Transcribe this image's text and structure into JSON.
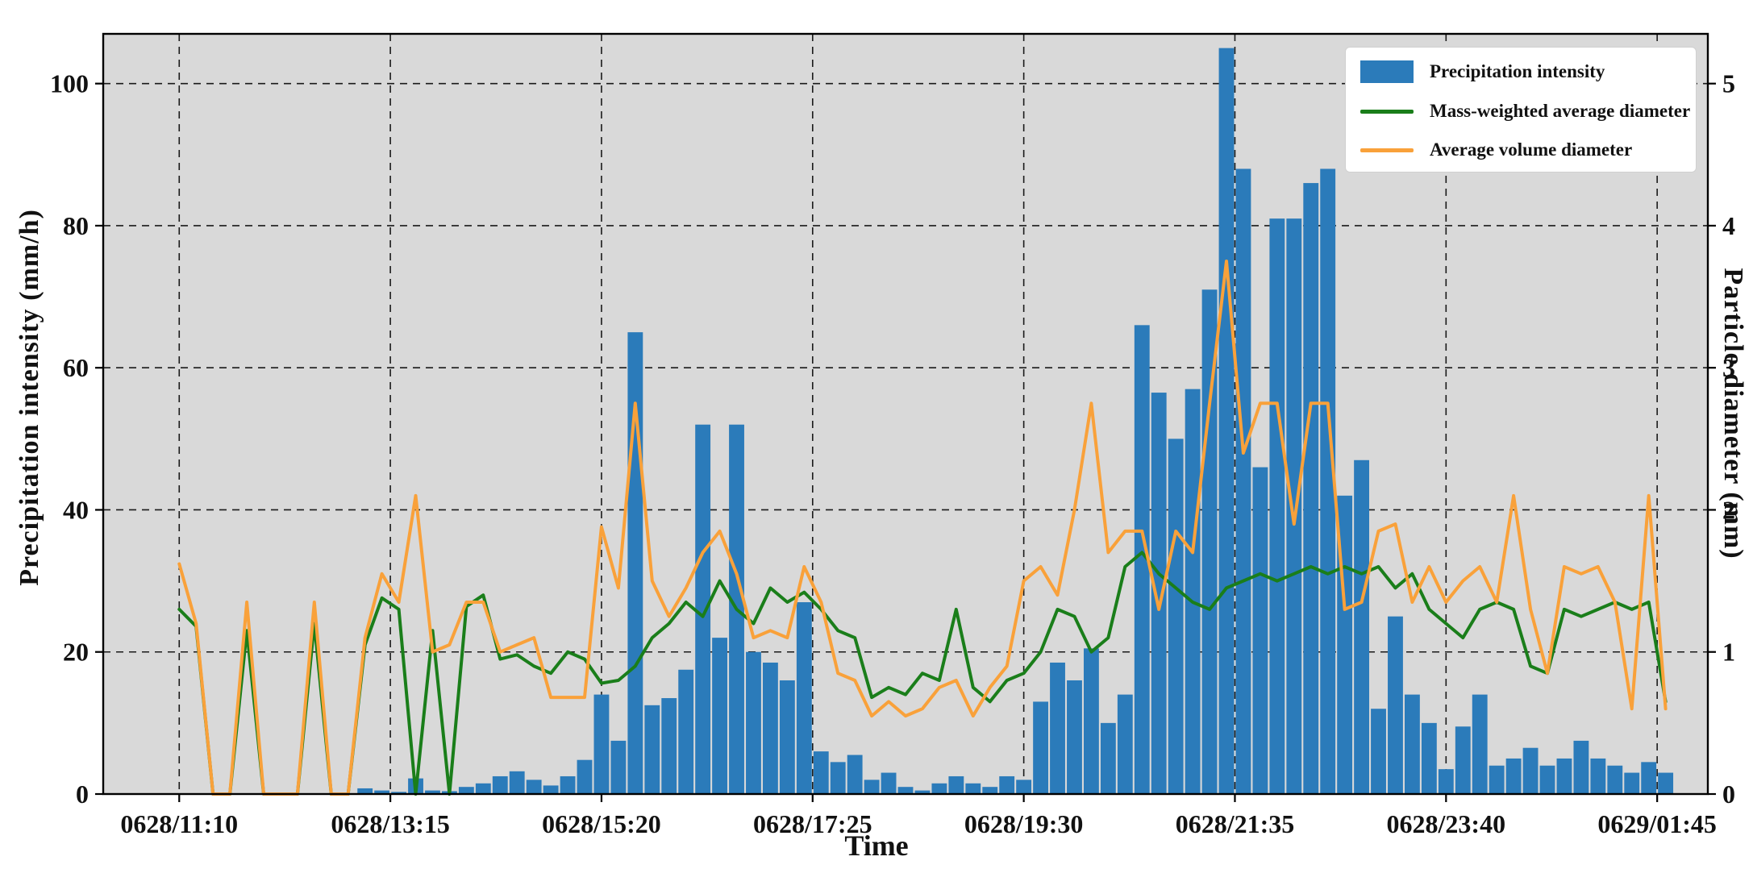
{
  "chart_data": {
    "type": "bar+line",
    "title": "",
    "xlabel": "Time",
    "ylabel_left": "Precipitation intensity (mm/h)",
    "ylabel_right": "Particle diameter (mm)",
    "x_tick_labels": [
      "0628/11:10",
      "0628/13:15",
      "0628/15:20",
      "0628/17:25",
      "0628/19:30",
      "0628/21:35",
      "0628/23:40",
      "0629/01:45"
    ],
    "x_tick_indices": [
      0,
      12.5,
      25,
      37.5,
      50,
      62.5,
      75,
      87.5
    ],
    "y_left_ticks": [
      0,
      20,
      40,
      60,
      80,
      100
    ],
    "y_left_max": 107,
    "y_right_ticks": [
      0,
      1,
      2,
      3,
      4,
      5
    ],
    "y_right_max": 5.35,
    "grid": "dashed",
    "legend_position": "upper right",
    "colors": {
      "bar": "#2b7bba",
      "green_line": "#1a7e1a",
      "orange_line": "#f9a13a",
      "plot_bg": "#d9d9d9",
      "grid_line": "#1a1a1a",
      "frame": "#000000"
    },
    "times": [
      "11:10",
      "11:20",
      "11:30",
      "11:40",
      "11:50",
      "12:00",
      "12:10",
      "12:20",
      "12:30",
      "12:40",
      "12:50",
      "13:00",
      "13:10",
      "13:20",
      "13:30",
      "13:40",
      "13:50",
      "14:00",
      "14:10",
      "14:20",
      "14:30",
      "14:40",
      "14:50",
      "15:00",
      "15:10",
      "15:20",
      "15:30",
      "15:40",
      "15:50",
      "16:00",
      "16:10",
      "16:20",
      "16:30",
      "16:40",
      "16:50",
      "17:00",
      "17:10",
      "17:20",
      "17:30",
      "17:40",
      "17:50",
      "18:00",
      "18:10",
      "18:20",
      "18:30",
      "18:40",
      "18:50",
      "19:00",
      "19:10",
      "19:20",
      "19:30",
      "19:40",
      "19:50",
      "20:00",
      "20:10",
      "20:20",
      "20:30",
      "20:40",
      "20:50",
      "21:00",
      "21:10",
      "21:20",
      "21:30",
      "21:40",
      "21:50",
      "22:00",
      "22:10",
      "22:20",
      "22:30",
      "22:40",
      "22:50",
      "23:00",
      "23:10",
      "23:20",
      "23:30",
      "23:40",
      "23:50",
      "00:00",
      "00:10",
      "00:20",
      "00:30",
      "00:40",
      "00:50",
      "01:00",
      "01:10",
      "01:20",
      "01:30",
      "01:40",
      "01:50"
    ],
    "series": [
      {
        "name": "Precipitation intensity",
        "type": "bar",
        "axis": "left",
        "color": "#2b7bba",
        "values": [
          0,
          0,
          0,
          0,
          0,
          0,
          0,
          0,
          0,
          0,
          0,
          0.8,
          0.5,
          0.3,
          2.2,
          0.5,
          0.4,
          1.0,
          1.5,
          2.5,
          3.2,
          2.0,
          1.2,
          2.5,
          4.8,
          14.0,
          7.5,
          65.0,
          12.5,
          13.5,
          17.5,
          52.0,
          22.0,
          52.0,
          20.0,
          18.5,
          16.0,
          27.0,
          6.0,
          4.5,
          5.5,
          2.0,
          3.0,
          1.0,
          0.5,
          1.5,
          2.5,
          1.5,
          1.0,
          2.5,
          2.0,
          13.0,
          18.5,
          16.0,
          20.5,
          10.0,
          14.0,
          66.0,
          56.5,
          50.0,
          57.0,
          71.0,
          105.0,
          88.0,
          46.0,
          81.0,
          81.0,
          86.0,
          88.0,
          42.0,
          47.0,
          12.0,
          25.0,
          14.0,
          10.0,
          3.5,
          9.5,
          14.0,
          4.0,
          5.0,
          6.5,
          4.0,
          5.0,
          7.5,
          5.0,
          4.0,
          3.0,
          4.5,
          3.0
        ]
      },
      {
        "name": "Mass-weighted average diameter",
        "type": "line",
        "axis": "right",
        "color": "#1a7e1a",
        "values": [
          1.3,
          1.18,
          0,
          0,
          1.15,
          0,
          0,
          0,
          1.2,
          0,
          0,
          1.05,
          1.38,
          1.3,
          0,
          1.15,
          0,
          1.32,
          1.4,
          0.95,
          0.98,
          0.9,
          0.85,
          1.0,
          0.95,
          0.78,
          0.8,
          0.9,
          1.1,
          1.2,
          1.35,
          1.25,
          1.5,
          1.3,
          1.2,
          1.45,
          1.35,
          1.42,
          1.3,
          1.15,
          1.1,
          0.68,
          0.75,
          0.7,
          0.85,
          0.8,
          1.3,
          0.75,
          0.65,
          0.8,
          0.85,
          1.0,
          1.3,
          1.25,
          1.0,
          1.1,
          1.6,
          1.7,
          1.55,
          1.45,
          1.35,
          1.3,
          1.45,
          1.5,
          1.55,
          1.5,
          1.55,
          1.6,
          1.55,
          1.6,
          1.55,
          1.6,
          1.45,
          1.55,
          1.3,
          1.2,
          1.1,
          1.3,
          1.35,
          1.3,
          0.9,
          0.85,
          1.3,
          1.25,
          1.3,
          1.35,
          1.3,
          1.35,
          0.65
        ]
      },
      {
        "name": "Average volume diameter",
        "type": "line",
        "axis": "right",
        "color": "#f9a13a",
        "values": [
          1.62,
          1.2,
          0,
          0,
          1.35,
          0,
          0,
          0,
          1.35,
          0,
          0,
          1.1,
          1.55,
          1.35,
          2.1,
          1.0,
          1.05,
          1.35,
          1.35,
          1.0,
          1.05,
          1.1,
          0.68,
          0.68,
          0.68,
          1.88,
          1.45,
          2.75,
          1.5,
          1.25,
          1.45,
          1.7,
          1.85,
          1.55,
          1.1,
          1.15,
          1.1,
          1.6,
          1.35,
          0.85,
          0.8,
          0.55,
          0.65,
          0.55,
          0.6,
          0.75,
          0.8,
          0.55,
          0.75,
          0.9,
          1.5,
          1.6,
          1.4,
          2.0,
          2.75,
          1.7,
          1.85,
          1.85,
          1.3,
          1.85,
          1.7,
          2.75,
          3.75,
          2.4,
          2.75,
          2.75,
          1.9,
          2.75,
          2.75,
          1.3,
          1.35,
          1.85,
          1.9,
          1.35,
          1.6,
          1.35,
          1.5,
          1.6,
          1.35,
          2.1,
          1.3,
          0.85,
          1.6,
          1.55,
          1.6,
          1.35,
          0.6,
          2.1,
          0.6
        ]
      }
    ]
  }
}
